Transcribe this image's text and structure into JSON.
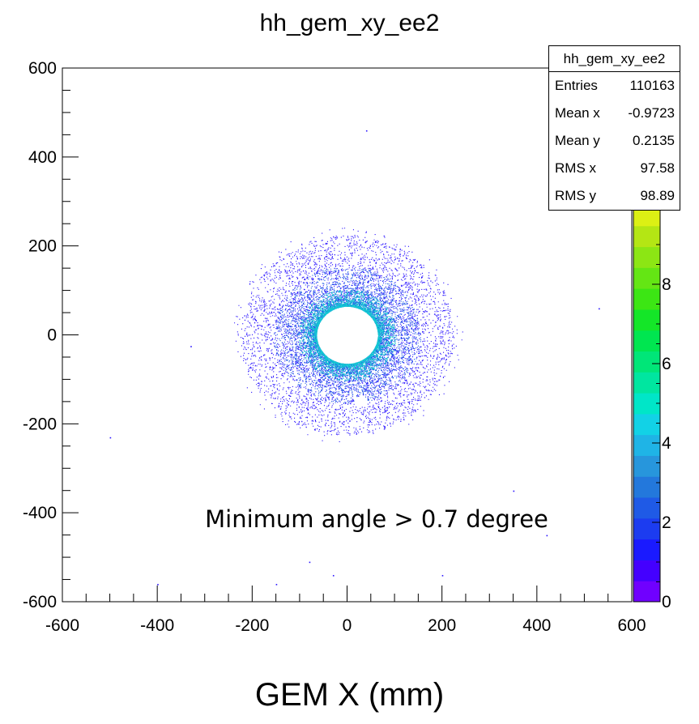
{
  "chart_data": {
    "type": "heatmap",
    "title": "hh_gem_xy_ee2",
    "xlabel": "GEM X (mm)",
    "ylabel": "",
    "xlim": [
      -600,
      600
    ],
    "ylim": [
      -600,
      600
    ],
    "x_ticks": [
      "-600",
      "-400",
      "-200",
      "0",
      "200",
      "400",
      "600"
    ],
    "y_ticks": [
      "600",
      "400",
      "200",
      "0",
      "-200",
      "-400",
      "-600"
    ],
    "colorbar": {
      "range": [
        0,
        10
      ],
      "ticks": [
        "8",
        "6",
        "4",
        "2",
        "0"
      ],
      "colors": [
        "#7000ff",
        "#4400ff",
        "#1a1aff",
        "#1c3cf0",
        "#1f5ae6",
        "#2378dc",
        "#2796dc",
        "#1fb4e6",
        "#12d2e6",
        "#00e6c8",
        "#00e6a0",
        "#00e678",
        "#00e650",
        "#14e628",
        "#3ce614",
        "#64e614",
        "#8ce614",
        "#b4e614",
        "#dcf014"
      ]
    },
    "distribution": {
      "shape": "annulus",
      "center": [
        0,
        0
      ],
      "inner_radius": 65,
      "outer_radius": 225,
      "gap_x_values": [
        -178,
        178
      ],
      "empty_block_center": [
        30,
        -150
      ]
    },
    "annotation": "Minimum angle > 0.7 degree",
    "stats_box": {
      "name": "hh_gem_xy_ee2",
      "rows": [
        {
          "label": "Entries",
          "value": "110163"
        },
        {
          "label": "Mean x",
          "value": "-0.9723"
        },
        {
          "label": "Mean y",
          "value": "0.2135"
        },
        {
          "label": "RMS x",
          "value": "97.58"
        },
        {
          "label": "RMS y",
          "value": "98.89"
        }
      ]
    }
  }
}
